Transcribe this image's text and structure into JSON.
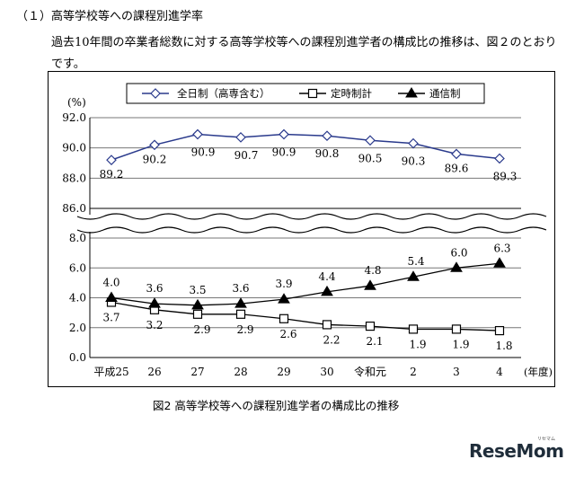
{
  "heading": "（１）高等学校等への課程別進学率",
  "paragraph": "過去10年間の卒業者総数に対する高等学校等への課程別進学者の構成比の推移は、図２のとおりです。",
  "caption": "図2  高等学校等への課程別進学者の構成比の推移",
  "logo": {
    "text": "ReseMom",
    "sub": "リセマム"
  },
  "chart_data": {
    "type": "line",
    "title": "",
    "ylabel": "(%)",
    "xlabel": "(年度)",
    "categories": [
      "平成25",
      "26",
      "27",
      "28",
      "29",
      "30",
      "令和元",
      "2",
      "3",
      "4"
    ],
    "axis_break": true,
    "upper_axis": {
      "ylim": [
        86.0,
        92.0
      ],
      "ticks": [
        "92.0",
        "90.0",
        "88.0",
        "86.0"
      ]
    },
    "lower_axis": {
      "ylim": [
        0.0,
        8.0
      ],
      "ticks": [
        "8.0",
        "6.0",
        "4.0",
        "2.0",
        "0.0"
      ]
    },
    "grid": true,
    "legend_position": "top",
    "series": [
      {
        "name": "全日制（高専含む）",
        "marker": "diamond",
        "color": "#2a3a8c",
        "values": [
          89.2,
          90.2,
          90.9,
          90.7,
          90.9,
          90.8,
          90.5,
          90.3,
          89.6,
          89.3
        ],
        "labels": [
          "89.2",
          "90.2",
          "90.9",
          "90.7",
          "90.9",
          "90.8",
          "90.5",
          "90.3",
          "89.6",
          "89.3"
        ]
      },
      {
        "name": "定時制計",
        "marker": "square",
        "color": "#000000",
        "values": [
          3.7,
          3.2,
          2.9,
          2.9,
          2.6,
          2.2,
          2.1,
          1.9,
          1.9,
          1.8
        ],
        "labels": [
          "3.7",
          "3.2",
          "2.9",
          "2.9",
          "2.6",
          "2.2",
          "2.1",
          "1.9",
          "1.9",
          "1.8"
        ]
      },
      {
        "name": "通信制",
        "marker": "triangle",
        "color": "#000000",
        "values": [
          4.0,
          3.6,
          3.5,
          3.6,
          3.9,
          4.4,
          4.8,
          5.4,
          6.0,
          6.3
        ],
        "labels": [
          "4.0",
          "3.6",
          "3.5",
          "3.6",
          "3.9",
          "4.4",
          "4.8",
          "5.4",
          "6.0",
          "6.3"
        ]
      }
    ]
  }
}
